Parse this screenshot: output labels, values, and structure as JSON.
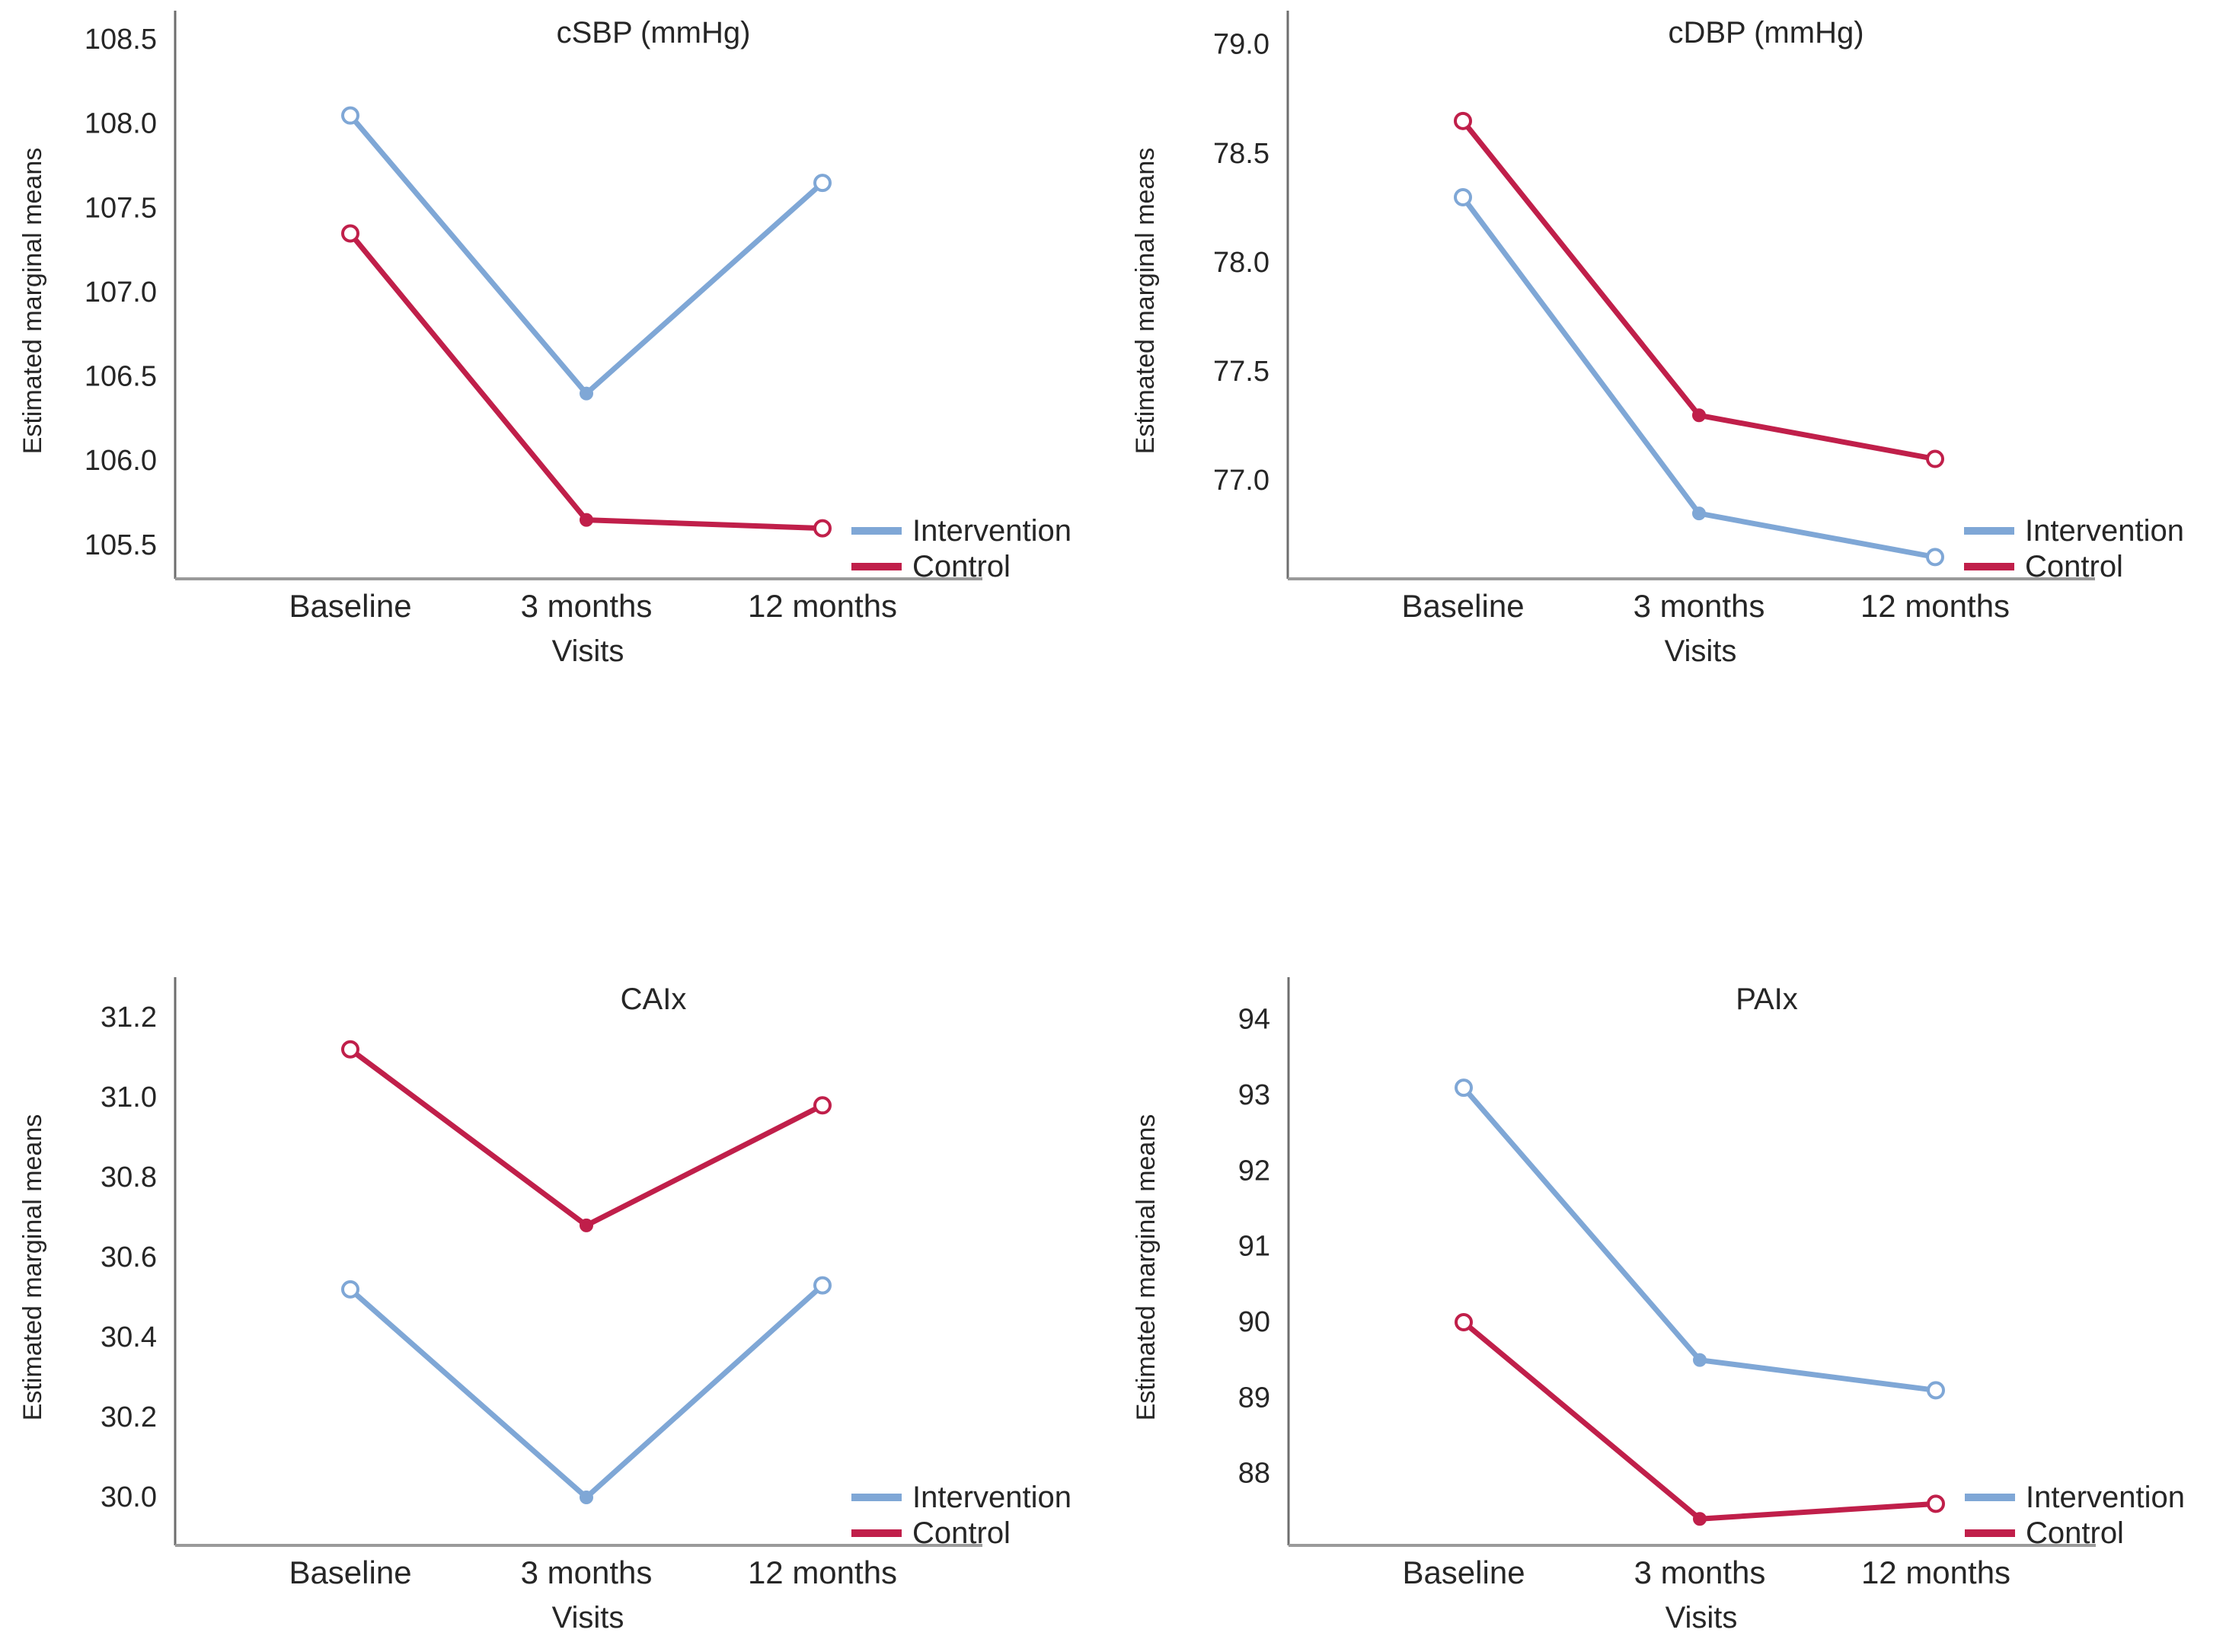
{
  "figure": {
    "background": "#ffffff",
    "shared_ylabel": "Estimated marginal means",
    "shared_xlabel": "Visits",
    "categories": [
      "Baseline",
      "3 months",
      "12 months"
    ],
    "legend_labels": [
      "Intervention",
      "Control"
    ],
    "colors": {
      "intervention": "#7fa7d6",
      "control": "#c01f4a",
      "y_axis_line": "#6e6e6e",
      "x_axis_line": "#9a9a9a",
      "text": "#262626"
    }
  },
  "chart_data": [
    {
      "type": "line",
      "title": "cSBP (mmHg)",
      "ylabel": "Estimated marginal means",
      "xlabel": "Visits",
      "categories": [
        "Baseline",
        "3 months",
        "12 months"
      ],
      "yticks": [
        "108.5",
        "108.0",
        "107.5",
        "107.0",
        "106.5",
        "106.0",
        "105.5"
      ],
      "ylim": [
        105.3,
        108.6
      ],
      "grid": false,
      "legend_position": "right-inside",
      "series": [
        {
          "name": "Intervention",
          "color": "#7fa7d6",
          "values": [
            108.05,
            106.4,
            107.65
          ]
        },
        {
          "name": "Control",
          "color": "#c01f4a",
          "values": [
            107.35,
            105.65,
            105.6
          ]
        }
      ]
    },
    {
      "type": "line",
      "title": "cDBP (mmHg)",
      "ylabel": "Estimated marginal means",
      "xlabel": "Visits",
      "categories": [
        "Baseline",
        "3 months",
        "12 months"
      ],
      "yticks": [
        "79.0",
        "78.5",
        "78.0",
        "77.5",
        "77.0"
      ],
      "ylim": [
        76.55,
        79.1
      ],
      "grid": false,
      "legend_position": "right-inside",
      "series": [
        {
          "name": "Intervention",
          "color": "#7fa7d6",
          "values": [
            78.3,
            76.85,
            76.65
          ]
        },
        {
          "name": "Control",
          "color": "#c01f4a",
          "values": [
            78.65,
            77.3,
            77.1
          ]
        }
      ]
    },
    {
      "type": "line",
      "title": "CAIx",
      "ylabel": "Estimated marginal means",
      "xlabel": "Visits",
      "categories": [
        "Baseline",
        "3 months",
        "12 months"
      ],
      "yticks": [
        "31.2",
        "31.0",
        "30.8",
        "30.6",
        "30.4",
        "30.2",
        "30.0"
      ],
      "ylim": [
        29.88,
        31.27
      ],
      "grid": false,
      "legend_position": "right-inside",
      "series": [
        {
          "name": "Intervention",
          "color": "#7fa7d6",
          "values": [
            30.52,
            30.0,
            30.53
          ]
        },
        {
          "name": "Control",
          "color": "#c01f4a",
          "values": [
            31.12,
            30.68,
            30.98
          ]
        }
      ]
    },
    {
      "type": "line",
      "title": "PAIx",
      "ylabel": "Estimated marginal means",
      "xlabel": "Visits",
      "categories": [
        "Baseline",
        "3 months",
        "12 months"
      ],
      "yticks": [
        "94",
        "93",
        "92",
        "91",
        "90",
        "89",
        "88"
      ],
      "ylim": [
        87.05,
        94.4
      ],
      "grid": false,
      "legend_position": "right-inside",
      "series": [
        {
          "name": "Intervention",
          "color": "#7fa7d6",
          "values": [
            93.1,
            89.5,
            89.1
          ]
        },
        {
          "name": "Control",
          "color": "#c01f4a",
          "values": [
            90.0,
            87.4,
            87.6
          ]
        }
      ]
    }
  ]
}
